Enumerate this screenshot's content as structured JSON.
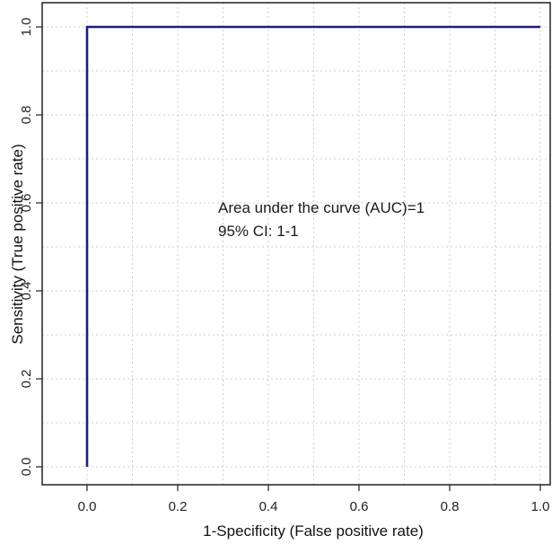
{
  "chart_data": {
    "type": "line",
    "xlabel": "1-Specificity (False positive rate)",
    "ylabel": "Sensitivity (True positive rate)",
    "xlim": [
      0,
      1
    ],
    "ylim": [
      0,
      1
    ],
    "x_ticks": [
      "0.0",
      "0.2",
      "0.4",
      "0.6",
      "0.8",
      "1.0"
    ],
    "y_ticks": [
      "0.0",
      "0.2",
      "0.4",
      "0.6",
      "0.8",
      "1.0"
    ],
    "grid": true,
    "grid_style": "dotted",
    "series": [
      {
        "color": "#1f1f7a",
        "x": [
          0.0,
          0.0,
          1.0
        ],
        "y": [
          0.0,
          1.0,
          1.0
        ]
      }
    ],
    "annotations": [
      "Area under the curve (AUC)=1",
      "95% CI: 1-1"
    ]
  }
}
